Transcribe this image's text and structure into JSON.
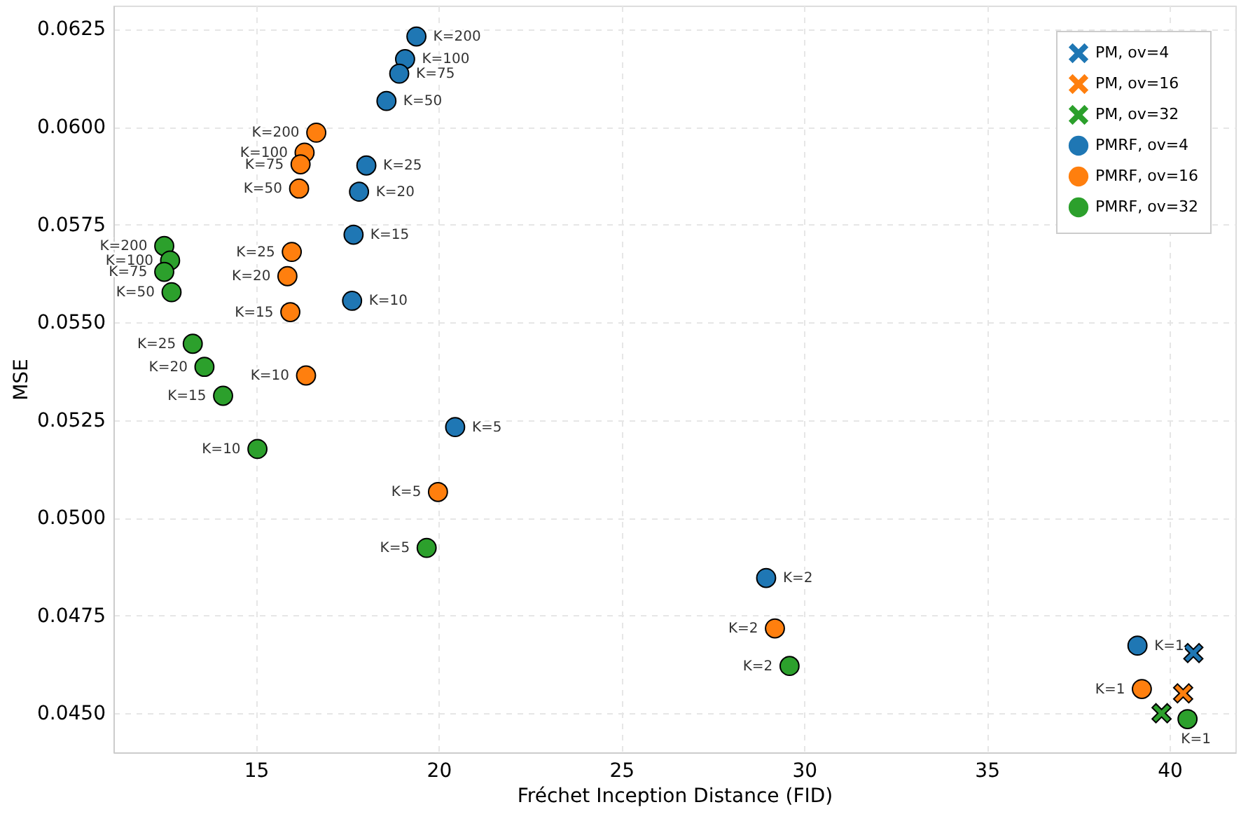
{
  "chart_data": {
    "type": "scatter",
    "xlabel": "Fréchet Inception Distance (FID)",
    "ylabel": "MSE",
    "xlim": [
      11.1,
      41.8
    ],
    "ylim": [
      0.044,
      0.0631
    ],
    "xticks": [
      15,
      20,
      25,
      30,
      35,
      40
    ],
    "yticks": [
      {
        "value": 0.045,
        "label": "0.0450"
      },
      {
        "value": 0.0475,
        "label": "0.0475"
      },
      {
        "value": 0.05,
        "label": "0.0500"
      },
      {
        "value": 0.0525,
        "label": "0.0525"
      },
      {
        "value": 0.055,
        "label": "0.0550"
      },
      {
        "value": 0.0575,
        "label": "0.0575"
      },
      {
        "value": 0.06,
        "label": "0.0600"
      },
      {
        "value": 0.0625,
        "label": "0.0625"
      }
    ],
    "grid": true,
    "legend": "top right",
    "annotations": [
      {
        "text": "K=200",
        "x": 19.39,
        "y": 0.06231
      },
      {
        "text": "K=100",
        "x": 19.08,
        "y": 0.06173
      },
      {
        "text": "K=75",
        "x": 18.92,
        "y": 0.06136
      },
      {
        "text": "K=50",
        "x": 18.57,
        "y": 0.06066
      },
      {
        "text": "K=25",
        "x": 18.02,
        "y": 0.05901
      },
      {
        "text": "K=20",
        "x": 17.82,
        "y": 0.05834
      },
      {
        "text": "K=15",
        "x": 17.67,
        "y": 0.05724
      },
      {
        "text": "K=10",
        "x": 17.63,
        "y": 0.05555
      },
      {
        "text": "K=5",
        "x": 20.45,
        "y": 0.05232
      },
      {
        "text": "K=2",
        "x": 28.96,
        "y": 0.04846
      },
      {
        "text": "K=1",
        "x": 39.12,
        "y": 0.04673
      },
      {
        "text": "K=200",
        "x": 16.65,
        "y": 0.05985
      },
      {
        "text": "K=100",
        "x": 16.33,
        "y": 0.05934
      },
      {
        "text": "K=75",
        "x": 16.22,
        "y": 0.05904
      },
      {
        "text": "K=50",
        "x": 16.18,
        "y": 0.05842
      },
      {
        "text": "K=25",
        "x": 15.98,
        "y": 0.0568
      },
      {
        "text": "K=20",
        "x": 15.86,
        "y": 0.05618
      },
      {
        "text": "K=15",
        "x": 15.94,
        "y": 0.05526
      },
      {
        "text": "K=10",
        "x": 16.37,
        "y": 0.05364
      },
      {
        "text": "K=5",
        "x": 19.98,
        "y": 0.05066
      },
      {
        "text": "K=2",
        "x": 29.2,
        "y": 0.04717
      },
      {
        "text": "K=1",
        "x": 39.24,
        "y": 0.04562
      },
      {
        "text": "K=200",
        "x": 12.49,
        "y": 0.05695
      },
      {
        "text": "K=100",
        "x": 12.65,
        "y": 0.05658
      },
      {
        "text": "K=75",
        "x": 12.49,
        "y": 0.05629
      },
      {
        "text": "K=50",
        "x": 12.69,
        "y": 0.05577
      },
      {
        "text": "K=25",
        "x": 13.27,
        "y": 0.05445
      },
      {
        "text": "K=20",
        "x": 13.59,
        "y": 0.05386
      },
      {
        "text": "K=15",
        "x": 14.1,
        "y": 0.05312
      },
      {
        "text": "K=10",
        "x": 15.04,
        "y": 0.05176
      },
      {
        "text": "K=5",
        "x": 19.67,
        "y": 0.04923
      },
      {
        "text": "K=2",
        "x": 29.6,
        "y": 0.04621
      },
      {
        "text": "K=1",
        "x": 40.49,
        "y": 0.04485
      }
    ],
    "series": [
      {
        "name": "PM, ov=4",
        "color": "#1f77b4",
        "marker": "cross",
        "x": [
          40.65
        ],
        "values": [
          0.04654
        ]
      },
      {
        "name": "PM, ov=16",
        "color": "#ff7f0e",
        "marker": "cross",
        "x": [
          40.37
        ],
        "values": [
          0.04551
        ]
      },
      {
        "name": "PM, ov=32",
        "color": "#2ca02c",
        "marker": "cross",
        "x": [
          39.78
        ],
        "values": [
          0.045
        ]
      },
      {
        "name": "PMRF, ov=4",
        "color": "#1f77b4",
        "marker": "circle",
        "x": [
          19.39,
          19.08,
          18.92,
          18.57,
          18.02,
          17.82,
          17.67,
          17.63,
          20.45,
          28.96,
          39.12
        ],
        "values": [
          0.06231,
          0.06173,
          0.06136,
          0.06066,
          0.05901,
          0.05834,
          0.05724,
          0.05555,
          0.05232,
          0.04846,
          0.04673
        ]
      },
      {
        "name": "PMRF, ov=16",
        "color": "#ff7f0e",
        "marker": "circle",
        "x": [
          16.65,
          16.33,
          16.22,
          16.18,
          15.98,
          15.86,
          15.94,
          16.37,
          19.98,
          29.2,
          39.24
        ],
        "values": [
          0.05985,
          0.05934,
          0.05904,
          0.05842,
          0.0568,
          0.05618,
          0.05526,
          0.05364,
          0.05066,
          0.04717,
          0.04562
        ]
      },
      {
        "name": "PMRF, ov=32",
        "color": "#2ca02c",
        "marker": "circle",
        "x": [
          12.49,
          12.65,
          12.49,
          12.69,
          13.27,
          13.59,
          14.1,
          15.04,
          19.67,
          29.6,
          40.49
        ],
        "values": [
          0.05695,
          0.05658,
          0.05629,
          0.05577,
          0.05445,
          0.05386,
          0.05312,
          0.05176,
          0.04923,
          0.04621,
          0.04485
        ]
      }
    ]
  }
}
